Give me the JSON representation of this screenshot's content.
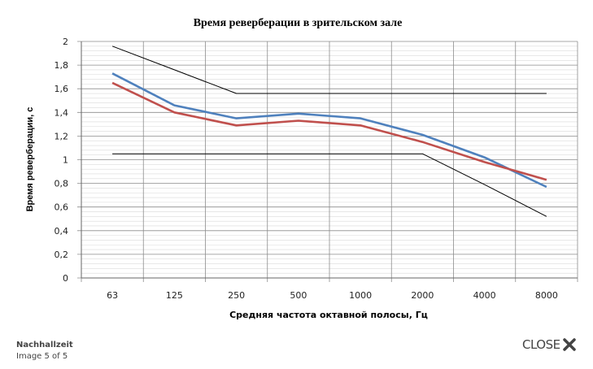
{
  "chart_data": {
    "type": "line",
    "title": "Время реверберации в зрительском зале",
    "xlabel": "Средняя частота октавной полосы, Гц",
    "ylabel": "Время реверберации, с",
    "categories": [
      "63",
      "125",
      "250",
      "500",
      "1000",
      "2000",
      "4000",
      "8000"
    ],
    "ylim": [
      0,
      2
    ],
    "yticks": [
      "0",
      "0,2",
      "0,4",
      "0,6",
      "0,8",
      "1",
      "1,2",
      "1,4",
      "1,6",
      "1,8",
      "2"
    ],
    "grid": true,
    "legend": "none",
    "series": [
      {
        "color": "#4f81bd",
        "values": [
          1.73,
          1.46,
          1.35,
          1.39,
          1.35,
          1.21,
          1.02,
          0.77
        ]
      },
      {
        "color": "#c0504d",
        "values": [
          1.65,
          1.4,
          1.29,
          1.33,
          1.29,
          1.15,
          0.98,
          0.83
        ]
      },
      {
        "color": "#000000",
        "values": [
          1.96,
          1.76,
          1.56,
          1.56,
          1.56,
          1.56,
          1.56,
          1.56
        ]
      },
      {
        "color": "#000000",
        "values": [
          1.05,
          1.05,
          1.05,
          1.05,
          1.05,
          1.05,
          0.79,
          0.52
        ]
      }
    ]
  },
  "footer": {
    "caption_title": "Nachhallzeit",
    "caption_counter": "Image 5 of 5",
    "close_label": "CLOSE"
  }
}
